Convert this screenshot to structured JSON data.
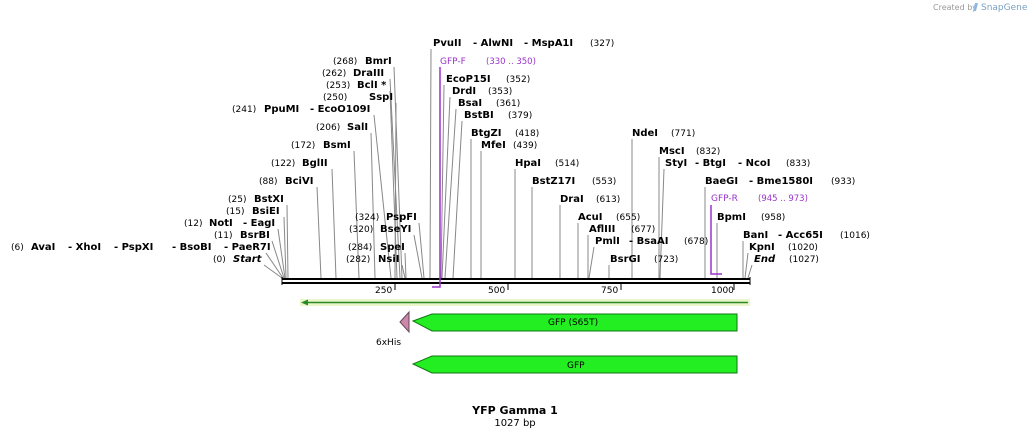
{
  "credit": {
    "prefix": "Created by",
    "app": "SnapGene"
  },
  "title": "YFP Gamma 1",
  "subtitle": "1027 bp",
  "colors": {
    "feature": "#22ee22",
    "primer": "#9933cc",
    "tag": "#cc88aa"
  },
  "ruler": {
    "ticks": [
      "250",
      "500",
      "750",
      "1000"
    ]
  },
  "sites": [
    {
      "parts": [
        "(0)",
        "Start"
      ]
    },
    {
      "parts": [
        "(6)",
        "AvaI",
        "- XhoI",
        "- PspXI",
        "- BsoBI",
        "- PaeR7I"
      ]
    },
    {
      "parts": [
        "(11)",
        "BsrBI"
      ]
    },
    {
      "parts": [
        "(12)",
        "NotI",
        "- EagI"
      ]
    },
    {
      "parts": [
        "(15)",
        "BsiEI"
      ]
    },
    {
      "parts": [
        "(25)",
        "BstXI"
      ]
    },
    {
      "parts": [
        "(88)",
        "BciVI"
      ]
    },
    {
      "parts": [
        "(122)",
        "BglII"
      ]
    },
    {
      "parts": [
        "(172)",
        "BsmI"
      ]
    },
    {
      "parts": [
        "(206)",
        "SalI"
      ]
    },
    {
      "parts": [
        "(241)",
        "PpuMI",
        "- EcoO109I"
      ]
    },
    {
      "parts": [
        "(250)",
        "SspI"
      ]
    },
    {
      "parts": [
        "(253)",
        "BclI *"
      ]
    },
    {
      "parts": [
        "(262)",
        "DraIII"
      ]
    },
    {
      "parts": [
        "(268)",
        "BmrI"
      ]
    },
    {
      "parts": [
        "(282)",
        "NsiI"
      ]
    },
    {
      "parts": [
        "(284)",
        "SpeI"
      ]
    },
    {
      "parts": [
        "(320)",
        "BseYI"
      ]
    },
    {
      "parts": [
        "(324)",
        "PspFI"
      ]
    },
    {
      "parts": [
        "PvuII",
        "- AlwNI",
        "- MspA1I",
        "(327)"
      ]
    },
    {
      "parts": [
        "EcoP15I",
        "(352)"
      ]
    },
    {
      "parts": [
        "DrdI",
        "(353)"
      ]
    },
    {
      "parts": [
        "BsaI",
        "(361)"
      ]
    },
    {
      "parts": [
        "BstBI",
        "(379)"
      ]
    },
    {
      "parts": [
        "BtgZI",
        "(418)"
      ]
    },
    {
      "parts": [
        "MfeI",
        "(439)"
      ]
    },
    {
      "parts": [
        "HpaI",
        "(514)"
      ]
    },
    {
      "parts": [
        "BstZ17I",
        "(553)"
      ]
    },
    {
      "parts": [
        "DraI",
        "(613)"
      ]
    },
    {
      "parts": [
        "AcuI",
        "(655)"
      ]
    },
    {
      "parts": [
        "AflIII",
        "(677)"
      ]
    },
    {
      "parts": [
        "PmlI",
        "- BsaAI",
        "(678)"
      ]
    },
    {
      "parts": [
        "BsrGI",
        "(723)"
      ]
    },
    {
      "parts": [
        "NdeI",
        "(771)"
      ]
    },
    {
      "parts": [
        "MscI",
        "(832)"
      ]
    },
    {
      "parts": [
        "StyI",
        "- BtgI",
        "- NcoI",
        "(833)"
      ]
    },
    {
      "parts": [
        "BaeGI",
        "- Bme1580I",
        "(933)"
      ]
    },
    {
      "parts": [
        "BpmI",
        "(958)"
      ]
    },
    {
      "parts": [
        "BanI",
        "- Acc65I",
        "(1016)"
      ]
    },
    {
      "parts": [
        "KpnI",
        "(1020)"
      ]
    },
    {
      "parts": [
        "End",
        "(1027)"
      ]
    }
  ],
  "primers": [
    {
      "name": "GFP-F",
      "range": "(330 .. 350)"
    },
    {
      "name": "GFP-R",
      "range": "(945 .. 973)"
    }
  ],
  "features": [
    {
      "name": "GFP (S65T)"
    },
    {
      "name": "6xHis"
    },
    {
      "name": "GFP"
    }
  ]
}
